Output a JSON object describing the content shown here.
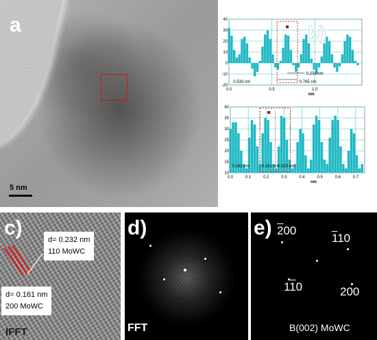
{
  "panels": {
    "a": {
      "letter": "a",
      "scale_label": "5 nm"
    },
    "b": {
      "letter": "b)"
    },
    "c": {
      "letter": "c)",
      "label_top_line1": "d= 0.232 nm",
      "label_top_line2": "110 MoWC",
      "label_bottom_line1": "d= 0.161 nm",
      "label_bottom_line2": "200 MoWC",
      "caption": "IFFT"
    },
    "d": {
      "letter": "d)",
      "caption": "FFT"
    },
    "e": {
      "letter": "e)",
      "spot_labels": {
        "top_left": "200",
        "top_right": "110",
        "bottom_left": "110",
        "bottom_right": "200"
      },
      "caption": "B(002) MoWC"
    }
  },
  "chart_data": [
    {
      "type": "bar",
      "xlabel": "nm",
      "ylabel": "",
      "xlim": [
        0.0,
        1.55
      ],
      "ylim": [
        -20,
        40
      ],
      "xticks": [
        "0.0",
        "0.5",
        "1.0"
      ],
      "xtick_values": [
        0.0,
        0.5,
        1.0
      ],
      "yticks": [
        "-20",
        "-10",
        "0",
        "10",
        "20",
        "30",
        "40"
      ],
      "grid": true,
      "annotations": [
        "0.232 nm",
        "0.533 nm",
        "0.765 nm"
      ],
      "x": [
        0.0,
        0.03,
        0.06,
        0.09,
        0.12,
        0.15,
        0.18,
        0.21,
        0.24,
        0.27,
        0.3,
        0.33,
        0.36,
        0.39,
        0.42,
        0.45,
        0.48,
        0.51,
        0.54,
        0.57,
        0.6,
        0.63,
        0.66,
        0.69,
        0.72,
        0.75,
        0.78,
        0.81,
        0.84,
        0.87,
        0.9,
        0.93,
        0.96,
        0.99,
        1.02,
        1.05,
        1.08,
        1.11,
        1.14,
        1.17,
        1.2,
        1.23,
        1.26,
        1.29,
        1.32,
        1.35,
        1.38,
        1.41,
        1.44,
        1.47,
        1.5
      ],
      "values": [
        32,
        25,
        12,
        5,
        8,
        22,
        24,
        18,
        5,
        -5,
        -12,
        -8,
        2,
        15,
        26,
        30,
        22,
        8,
        -4,
        -6,
        2,
        14,
        26,
        25,
        12,
        -2,
        -8,
        -4,
        8,
        22,
        26,
        18,
        4,
        -6,
        -10,
        -4,
        6,
        18,
        24,
        20,
        8,
        -4,
        -8,
        -3,
        8,
        20,
        26,
        24,
        12,
        2,
        -2
      ]
    },
    {
      "type": "bar",
      "xlabel": "nm",
      "ylabel": "",
      "xlim": [
        0.0,
        0.75
      ],
      "ylim": [
        10,
        40
      ],
      "xticks": [
        "0.0",
        "0.1",
        "0.2",
        "0.3",
        "0.4",
        "0.5",
        "0.6",
        "0.7"
      ],
      "xtick_values": [
        0.0,
        0.1,
        0.2,
        0.3,
        0.4,
        0.5,
        0.6,
        0.7
      ],
      "yticks": [
        "10",
        "15",
        "20",
        "25",
        "30",
        "35",
        "40"
      ],
      "grid": true,
      "annotations": [
        "0.161 nm",
        "0.161 nm",
        "0.323 nm"
      ],
      "x": [
        0.0,
        0.015,
        0.03,
        0.045,
        0.06,
        0.075,
        0.09,
        0.105,
        0.12,
        0.135,
        0.15,
        0.165,
        0.18,
        0.195,
        0.21,
        0.225,
        0.24,
        0.255,
        0.27,
        0.285,
        0.3,
        0.315,
        0.33,
        0.345,
        0.36,
        0.375,
        0.39,
        0.405,
        0.42,
        0.435,
        0.45,
        0.465,
        0.48,
        0.495,
        0.51,
        0.525,
        0.54,
        0.555,
        0.57,
        0.585,
        0.6,
        0.615,
        0.63,
        0.645,
        0.66,
        0.675,
        0.69,
        0.705,
        0.72,
        0.735
      ],
      "values": [
        30,
        33,
        33,
        28,
        20,
        14,
        12,
        26,
        34,
        32,
        22,
        14,
        28,
        35,
        34,
        24,
        14,
        12,
        22,
        36,
        35,
        25,
        16,
        12,
        14,
        24,
        30,
        28,
        18,
        12,
        16,
        32,
        36,
        34,
        24,
        16,
        14,
        26,
        34,
        36,
        34,
        22,
        14,
        12,
        20,
        30,
        28,
        18,
        12,
        14
      ]
    }
  ]
}
